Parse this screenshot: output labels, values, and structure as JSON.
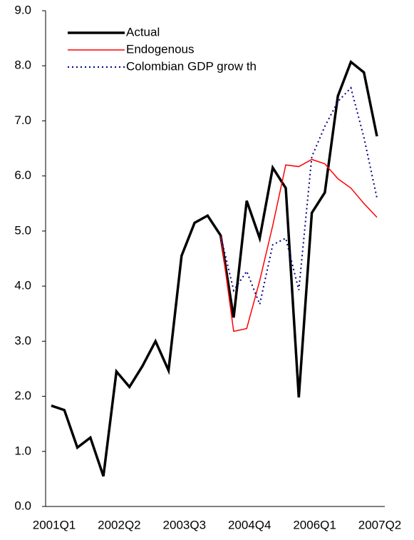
{
  "chart_data": {
    "type": "line",
    "categories": [
      "2001Q1",
      null,
      null,
      null,
      null,
      "2002Q2",
      null,
      null,
      null,
      null,
      "2003Q3",
      null,
      null,
      null,
      null,
      "2004Q4",
      null,
      null,
      null,
      null,
      "2006Q1",
      null,
      null,
      null,
      null,
      "2007Q2"
    ],
    "series": [
      {
        "name": "Actual",
        "color": "#000000",
        "values": [
          1.83,
          1.75,
          1.07,
          1.25,
          0.55,
          2.45,
          2.17,
          2.55,
          3.0,
          2.47,
          4.55,
          5.15,
          5.28,
          4.92,
          3.43,
          5.55,
          4.87,
          6.15,
          5.78,
          1.98,
          5.33,
          5.7,
          7.45,
          8.07,
          7.88,
          6.72
        ]
      },
      {
        "name": "Endogenous",
        "color": "#ff0000",
        "values": [
          null,
          null,
          null,
          null,
          null,
          null,
          null,
          null,
          null,
          null,
          null,
          null,
          null,
          4.92,
          3.18,
          3.23,
          4.1,
          5.1,
          6.2,
          6.17,
          6.3,
          6.22,
          5.95,
          5.78,
          5.5,
          5.25
        ]
      },
      {
        "name": "Colombian GDP grow th",
        "color": "#000080",
        "values": [
          null,
          null,
          null,
          null,
          null,
          null,
          null,
          null,
          null,
          null,
          null,
          null,
          null,
          4.92,
          3.92,
          4.27,
          3.67,
          4.75,
          4.87,
          3.93,
          6.35,
          6.9,
          7.35,
          7.6,
          6.7,
          5.6
        ]
      }
    ],
    "ylim": [
      0,
      9
    ],
    "yticks": [
      {
        "value": 0,
        "label": "0.0"
      },
      {
        "value": 1,
        "label": "1.0"
      },
      {
        "value": 2,
        "label": "2.0"
      },
      {
        "value": 3,
        "label": "3.0"
      },
      {
        "value": 4,
        "label": "4.0"
      },
      {
        "value": 5,
        "label": "5.0"
      },
      {
        "value": 6,
        "label": "6.0"
      },
      {
        "value": 7,
        "label": "7.0"
      },
      {
        "value": 8,
        "label": "8.0"
      },
      {
        "value": 9,
        "label": "9.0"
      }
    ]
  }
}
